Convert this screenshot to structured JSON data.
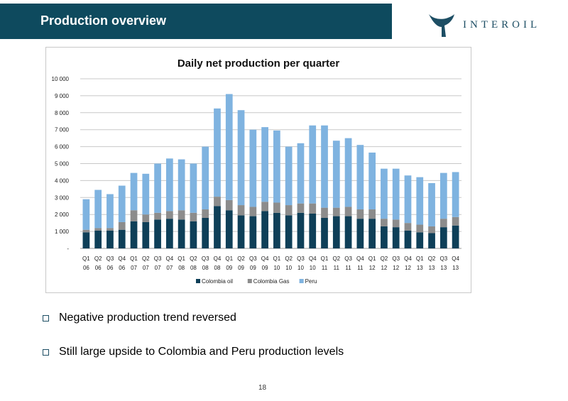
{
  "header": {
    "title": "Production overview"
  },
  "logo": {
    "text": "INTEROIL"
  },
  "bullets": [
    "Negative production trend reversed",
    "Still large upside to Colombia and Peru production levels"
  ],
  "footer": {
    "page_number": "18"
  },
  "colors": {
    "colombia_oil": "#0e3f58",
    "colombia_gas": "#8c8c8c",
    "peru": "#7fb3e0",
    "header_bg": "#0e4a5e"
  },
  "chart_data": {
    "type": "bar",
    "stacked": true,
    "title": "Daily net production per quarter",
    "xlabel": "",
    "ylabel": "",
    "ylim": [
      0,
      10000
    ],
    "yticks": [
      "-",
      "1 000",
      "2 000",
      "3 000",
      "4 000",
      "5 000",
      "6 000",
      "7 000",
      "8 000",
      "9 000",
      "10 000"
    ],
    "grid": true,
    "legend_position": "bottom",
    "categories": [
      [
        "Q1",
        "06"
      ],
      [
        "Q2",
        "06"
      ],
      [
        "Q3",
        "06"
      ],
      [
        "Q4",
        "06"
      ],
      [
        "Q1",
        "07"
      ],
      [
        "Q2",
        "07"
      ],
      [
        "Q3",
        "07"
      ],
      [
        "Q4",
        "07"
      ],
      [
        "Q1",
        "08"
      ],
      [
        "Q2",
        "08"
      ],
      [
        "Q3",
        "08"
      ],
      [
        "Q4",
        "08"
      ],
      [
        "Q1",
        "09"
      ],
      [
        "Q2",
        "09"
      ],
      [
        "Q3",
        "09"
      ],
      [
        "Q4",
        "09"
      ],
      [
        "Q1",
        "10"
      ],
      [
        "Q2",
        "10"
      ],
      [
        "Q3",
        "10"
      ],
      [
        "Q4",
        "10"
      ],
      [
        "Q1",
        "11"
      ],
      [
        "Q2",
        "11"
      ],
      [
        "Q3",
        "11"
      ],
      [
        "Q4",
        "11"
      ],
      [
        "Q1",
        "12"
      ],
      [
        "Q2",
        "12"
      ],
      [
        "Q3",
        "12"
      ],
      [
        "Q4",
        "12"
      ],
      [
        "Q1",
        "13"
      ],
      [
        "Q2",
        "13"
      ],
      [
        "Q3",
        "13"
      ],
      [
        "Q4",
        "13"
      ]
    ],
    "series": [
      {
        "name": "Colombia oil",
        "color": "#0e3f58",
        "values": [
          950,
          1050,
          1050,
          1100,
          1600,
          1550,
          1700,
          1750,
          1700,
          1600,
          1800,
          2500,
          2250,
          1950,
          1900,
          2200,
          2100,
          1950,
          2100,
          2050,
          1800,
          1900,
          1900,
          1750,
          1750,
          1300,
          1250,
          1050,
          950,
          900,
          1250,
          1350
        ]
      },
      {
        "name": "Colombia Gas",
        "color": "#8c8c8c",
        "values": [
          150,
          150,
          150,
          450,
          650,
          450,
          400,
          450,
          550,
          500,
          500,
          550,
          600,
          600,
          550,
          550,
          600,
          600,
          550,
          600,
          600,
          500,
          550,
          550,
          550,
          450,
          450,
          450,
          450,
          400,
          500,
          500
        ]
      },
      {
        "name": "Peru",
        "color": "#7fb3e0",
        "values": [
          1800,
          2250,
          2000,
          2150,
          2200,
          2400,
          2900,
          3100,
          3000,
          2900,
          3700,
          5200,
          6250,
          5600,
          4550,
          4400,
          4250,
          3450,
          3550,
          4600,
          4850,
          3950,
          4050,
          3800,
          3350,
          2950,
          3000,
          2800,
          2800,
          2550,
          2700,
          2650
        ]
      }
    ]
  }
}
